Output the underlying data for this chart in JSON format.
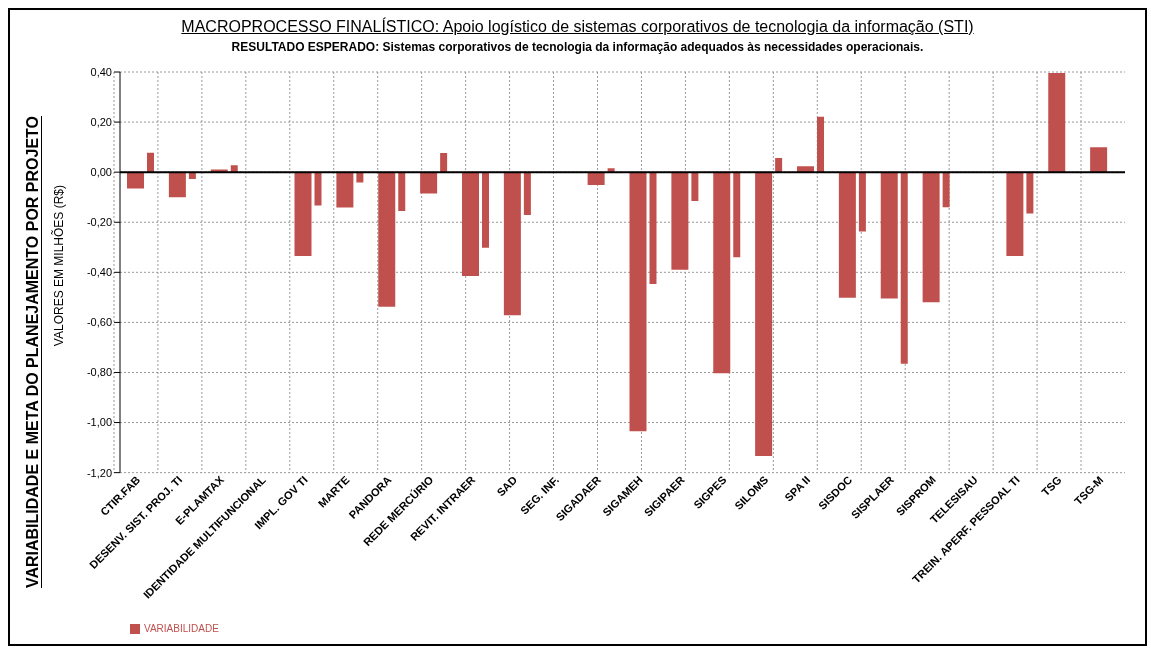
{
  "chart_data": {
    "type": "bar",
    "title": "MACROPROCESSO FINALÍSTICO: Apoio logístico de sistemas corporativos de tecnologia da informação (STI)",
    "subtitle": "RESULTADO ESPERADO: Sistemas corporativos de tecnologia da informação adequados às necessidades operacionais.",
    "ylabel": "VARIABILIDADE E META DO PLANEJAMENTO POR PROJETO",
    "annotations": [
      "VALORES EM MILHÕES (R$)"
    ],
    "categories": [
      "CTIR.FAB",
      "DESENV. SIST. PROJ. TI",
      "E-PLAMTAX",
      "IDENTIDADE MULTIFUNCIONAL",
      "IMPL. GOV TI",
      "MARTE",
      "PANDORA",
      "REDE MERCÚRIO",
      "REVIT. INTRAER",
      "SAD",
      "SEG. INF.",
      "SIGADAER",
      "SIGAMEH",
      "SIGIPAER",
      "SIGPES",
      "SILOMS",
      "SPA II",
      "SISDOC",
      "SISPLAER",
      "SISPROM",
      "TELESISAU",
      "TREIN. APERF. PESSOAL TI",
      "TSG",
      "TSG-M"
    ],
    "series": [
      {
        "name": "VARIABILIDADE",
        "color": "#c0504d",
        "values": [
          -0.065,
          -0.1,
          0.011,
          null,
          -0.335,
          -0.141,
          -0.537,
          -0.085,
          -0.415,
          -0.571,
          null,
          -0.051,
          -1.035,
          -0.39,
          -0.803,
          -1.134,
          0.024,
          -0.502,
          -0.505,
          -0.52,
          null,
          -0.335,
          0.396,
          0.099
        ]
      },
      {
        "color": "#c0504d",
        "values": [
          0.078,
          -0.027,
          0.028,
          null,
          -0.133,
          -0.041,
          -0.155,
          0.077,
          -0.302,
          -0.171,
          null,
          0.016,
          -0.447,
          -0.115,
          -0.34,
          0.057,
          0.221,
          -0.237,
          -0.765,
          -0.14,
          null,
          -0.165,
          null,
          null
        ]
      }
    ],
    "ylim": [
      -1.2,
      0.4
    ],
    "yticks": [
      {
        "value": -1.2,
        "label": "-1,20"
      },
      {
        "value": -1,
        "label": "-1,00"
      },
      {
        "value": -0.8,
        "label": "-0,80"
      },
      {
        "value": -0.6,
        "label": "-0,60"
      },
      {
        "value": -0.4,
        "label": "-0,40"
      },
      {
        "value": -0.2,
        "label": "-0,20"
      },
      {
        "value": 0,
        "label": "0,00"
      },
      {
        "value": 0.2,
        "label": "0,20"
      },
      {
        "value": 0.4,
        "label": "0,40"
      }
    ],
    "grid": true,
    "legend": "bottom left"
  }
}
